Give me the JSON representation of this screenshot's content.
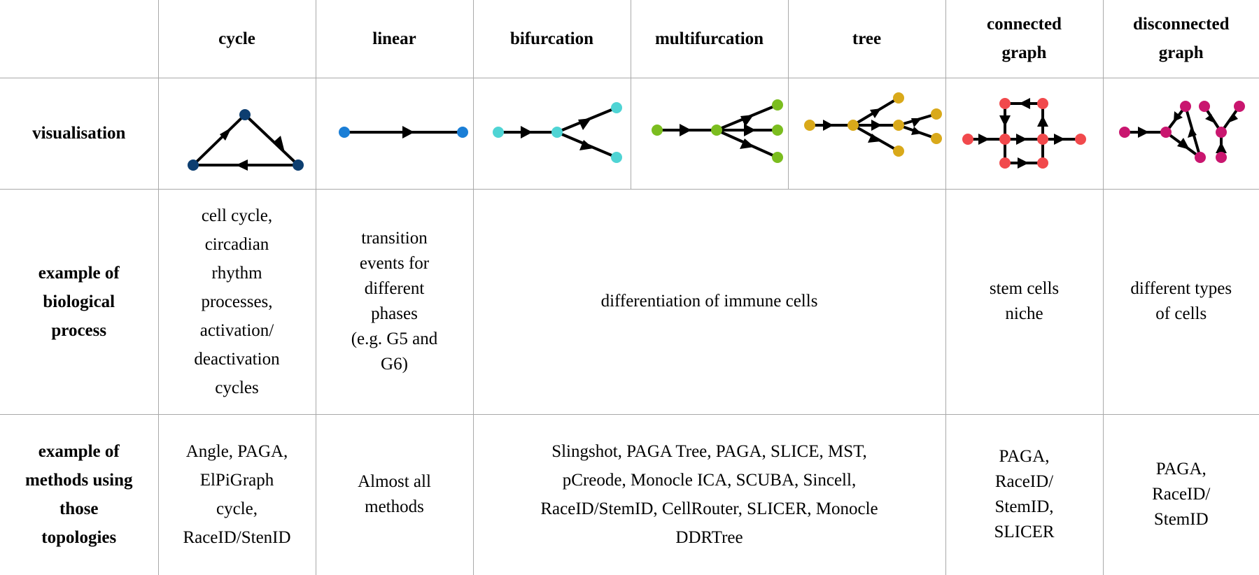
{
  "header": {
    "corner": "",
    "columns": [
      "cycle",
      "linear",
      "bifurcation",
      "multifurcation",
      "tree",
      "connected\ngraph",
      "disconnected\ngraph"
    ]
  },
  "rows": {
    "visualisation": "visualisation",
    "biological": "example of\nbiological\nprocess",
    "methods": "example of\nmethods using\nthose\ntopologies"
  },
  "biological": {
    "cycle": "cell cycle,\ncircadian\nrhythm\nprocesses,\nactivation/\ndeactivation\ncycles",
    "linear": "transition\nevents for\ndifferent\nphases\n(e.g. G5 and\nG6)",
    "branching": "differentiation of immune cells",
    "connected": "stem cells\nniche",
    "disconnected": "different types\nof cells"
  },
  "methods": {
    "cycle": "Angle, PAGA,\nElPiGraph\ncycle,\nRaceID/StenID",
    "linear": "Almost all\nmethods",
    "branching": "Slingshot, PAGA Tree, PAGA, SLICE, MST,\npCreode, Monocle ICA, SCUBA, Sincell,\nRaceID/StemID, CellRouter, SLICER, Monocle\nDDRTree",
    "connected": "PAGA,\nRaceID/\nStemID,\nSLICER",
    "disconnected": "PAGA,\nRaceID/\nStemID"
  },
  "colors": {
    "cycle": "#0d3e70",
    "linear": "#1a7ed6",
    "bifurcation": "#4fd4d4",
    "multifurcation": "#7bbd1f",
    "tree": "#d9a91a",
    "connected": "#f1494c",
    "disconnected": "#c9166f",
    "edge": "#000000",
    "border": "#a9a9a9"
  }
}
